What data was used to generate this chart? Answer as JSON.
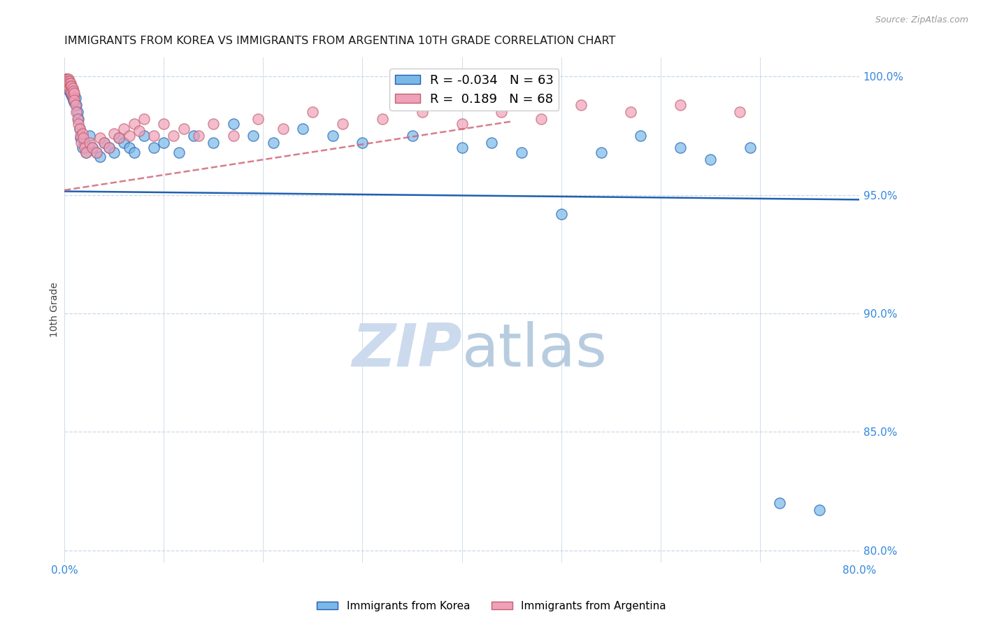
{
  "title": "IMMIGRANTS FROM KOREA VS IMMIGRANTS FROM ARGENTINA 10TH GRADE CORRELATION CHART",
  "source": "Source: ZipAtlas.com",
  "ylabel": "10th Grade",
  "yaxis_labels": [
    "100.0%",
    "95.0%",
    "90.0%",
    "85.0%",
    "80.0%"
  ],
  "yaxis_values": [
    1.0,
    0.95,
    0.9,
    0.85,
    0.8
  ],
  "R_korea": -0.034,
  "R_argentina": 0.189,
  "N_korea": 63,
  "N_argentina": 68,
  "color_korea": "#7ab8e8",
  "color_argentina": "#f0a0b8",
  "color_trendline_korea": "#2060b0",
  "color_trendline_argentina": "#d06878",
  "watermark_zip_color": "#c8d8ee",
  "watermark_atlas_color": "#b8cce4",
  "title_color": "#1a1a1a",
  "axis_label_color": "#3388dd",
  "grid_color": "#c8d8e8",
  "korea_x": [
    0.001,
    0.002,
    0.002,
    0.003,
    0.003,
    0.004,
    0.004,
    0.005,
    0.005,
    0.006,
    0.006,
    0.007,
    0.007,
    0.008,
    0.008,
    0.009,
    0.009,
    0.01,
    0.01,
    0.011,
    0.012,
    0.013,
    0.014,
    0.015,
    0.016,
    0.018,
    0.02,
    0.022,
    0.025,
    0.028,
    0.032,
    0.036,
    0.04,
    0.045,
    0.05,
    0.055,
    0.06,
    0.065,
    0.07,
    0.08,
    0.09,
    0.1,
    0.115,
    0.13,
    0.15,
    0.17,
    0.19,
    0.21,
    0.24,
    0.27,
    0.3,
    0.35,
    0.4,
    0.43,
    0.46,
    0.5,
    0.54,
    0.58,
    0.62,
    0.65,
    0.69,
    0.72,
    0.76
  ],
  "korea_y": [
    0.997,
    0.999,
    0.998,
    0.999,
    0.997,
    0.998,
    0.996,
    0.997,
    0.994,
    0.996,
    0.993,
    0.995,
    0.992,
    0.994,
    0.991,
    0.993,
    0.99,
    0.992,
    0.989,
    0.991,
    0.988,
    0.985,
    0.982,
    0.978,
    0.974,
    0.97,
    0.972,
    0.968,
    0.975,
    0.97,
    0.968,
    0.966,
    0.972,
    0.97,
    0.968,
    0.974,
    0.972,
    0.97,
    0.968,
    0.975,
    0.97,
    0.972,
    0.968,
    0.975,
    0.972,
    0.98,
    0.975,
    0.972,
    0.978,
    0.975,
    0.972,
    0.975,
    0.97,
    0.972,
    0.968,
    0.942,
    0.968,
    0.975,
    0.97,
    0.965,
    0.97,
    0.82,
    0.817
  ],
  "argentina_x": [
    0.001,
    0.001,
    0.002,
    0.002,
    0.003,
    0.003,
    0.003,
    0.004,
    0.004,
    0.004,
    0.005,
    0.005,
    0.005,
    0.006,
    0.006,
    0.006,
    0.007,
    0.007,
    0.008,
    0.008,
    0.009,
    0.009,
    0.01,
    0.01,
    0.011,
    0.012,
    0.013,
    0.014,
    0.015,
    0.016,
    0.017,
    0.018,
    0.019,
    0.02,
    0.022,
    0.025,
    0.028,
    0.032,
    0.036,
    0.04,
    0.045,
    0.05,
    0.055,
    0.06,
    0.065,
    0.07,
    0.075,
    0.08,
    0.09,
    0.1,
    0.11,
    0.12,
    0.135,
    0.15,
    0.17,
    0.195,
    0.22,
    0.25,
    0.28,
    0.32,
    0.36,
    0.4,
    0.44,
    0.48,
    0.52,
    0.57,
    0.62,
    0.68
  ],
  "argentina_y": [
    0.999,
    0.998,
    0.999,
    0.997,
    0.999,
    0.998,
    0.997,
    0.999,
    0.998,
    0.996,
    0.998,
    0.997,
    0.995,
    0.997,
    0.996,
    0.994,
    0.996,
    0.993,
    0.995,
    0.992,
    0.994,
    0.991,
    0.993,
    0.99,
    0.988,
    0.985,
    0.982,
    0.98,
    0.978,
    0.975,
    0.972,
    0.976,
    0.974,
    0.97,
    0.968,
    0.972,
    0.97,
    0.968,
    0.974,
    0.972,
    0.97,
    0.976,
    0.974,
    0.978,
    0.975,
    0.98,
    0.977,
    0.982,
    0.975,
    0.98,
    0.975,
    0.978,
    0.975,
    0.98,
    0.975,
    0.982,
    0.978,
    0.985,
    0.98,
    0.982,
    0.985,
    0.98,
    0.985,
    0.982,
    0.988,
    0.985,
    0.988,
    0.985
  ]
}
